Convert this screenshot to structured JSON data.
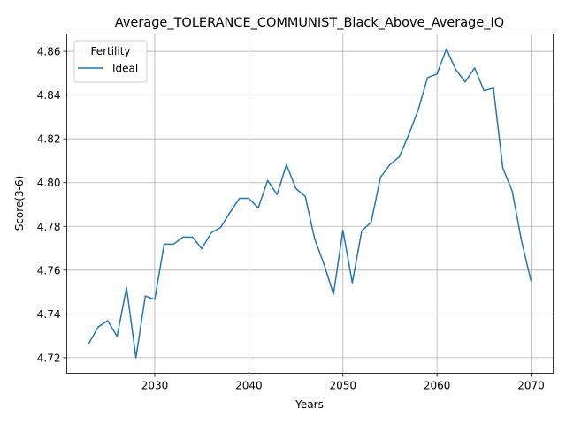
{
  "chart_data": {
    "type": "line",
    "title": "Average_TOLERANCE_COMMUNIST_Black_Above_Average_IQ",
    "xlabel": "Years",
    "ylabel": "Score(3-6)",
    "xlim": [
      2020.65,
      2072.35
    ],
    "ylim": [
      4.7129,
      4.8679
    ],
    "xticks": [
      2030,
      2040,
      2050,
      2060,
      2070
    ],
    "yticks": [
      4.72,
      4.74,
      4.76,
      4.78,
      4.8,
      4.82,
      4.84,
      4.86
    ],
    "grid": true,
    "legend": {
      "title": "Fertility",
      "placement": "top-left"
    },
    "series": [
      {
        "name": "Ideal",
        "color": "#1f77b4",
        "x": [
          2023,
          2024,
          2025,
          2026,
          2027,
          2028,
          2029,
          2030,
          2031,
          2032,
          2033,
          2034,
          2035,
          2036,
          2037,
          2038,
          2039,
          2040,
          2041,
          2042,
          2043,
          2044,
          2045,
          2046,
          2047,
          2048,
          2049,
          2050,
          2051,
          2052,
          2053,
          2054,
          2055,
          2056,
          2057,
          2058,
          2059,
          2060,
          2061,
          2062,
          2063,
          2064,
          2065,
          2066,
          2067,
          2068,
          2069,
          2070
        ],
        "values": [
          4.7265,
          4.7341,
          4.7369,
          4.7297,
          4.7521,
          4.72,
          4.7482,
          4.7466,
          4.7719,
          4.7719,
          4.7751,
          4.7751,
          4.7698,
          4.7771,
          4.7795,
          4.7864,
          4.7928,
          4.7928,
          4.7884,
          4.801,
          4.7945,
          4.8082,
          4.7973,
          4.7937,
          4.7743,
          4.7626,
          4.749,
          4.7783,
          4.7542,
          4.7779,
          4.7819,
          4.8025,
          4.8082,
          4.8118,
          4.8219,
          4.8331,
          4.848,
          4.8496,
          4.8611,
          4.8516,
          4.846,
          4.8524,
          4.842,
          4.8432,
          4.8066,
          4.7961,
          4.7731,
          4.755
        ]
      }
    ]
  }
}
